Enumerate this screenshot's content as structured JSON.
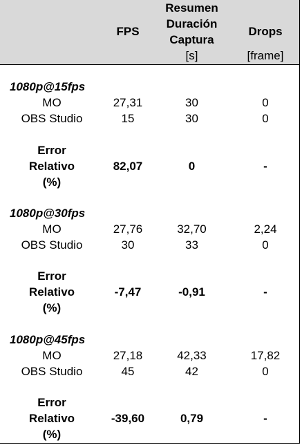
{
  "header": {
    "fps": "FPS",
    "summary_lines": [
      "Resumen",
      "Duración",
      "Captura"
    ],
    "duration_unit": "[s]",
    "drops": "Drops",
    "drops_unit": "[frame]"
  },
  "groups": [
    {
      "title": "1080p@15fps",
      "rows": [
        {
          "label": "MO",
          "fps": "27,31",
          "duration": "30",
          "drops": "0"
        },
        {
          "label": "OBS Studio",
          "fps": "15",
          "duration": "30",
          "drops": "0"
        }
      ],
      "error": {
        "label_lines": [
          "Error",
          "Relativo",
          "(%)"
        ],
        "fps": "82,07",
        "duration": "0",
        "drops": "-"
      }
    },
    {
      "title": "1080p@30fps",
      "rows": [
        {
          "label": "MO",
          "fps": "27,76",
          "duration": "32,70",
          "drops": "2,24"
        },
        {
          "label": "OBS Studio",
          "fps": "30",
          "duration": "33",
          "drops": "0"
        }
      ],
      "error": {
        "label_lines": [
          "Error",
          "Relativo",
          "(%)"
        ],
        "fps": "-7,47",
        "duration": "-0,91",
        "drops": "-"
      }
    },
    {
      "title": "1080p@45fps",
      "rows": [
        {
          "label": "MO",
          "fps": "27,18",
          "duration": "42,33",
          "drops": "17,82"
        },
        {
          "label": "OBS Studio",
          "fps": "45",
          "duration": "42",
          "drops": "0"
        }
      ],
      "error": {
        "label_lines": [
          "Error",
          "Relativo",
          "(%)"
        ],
        "fps": "-39,60",
        "duration": "0,79",
        "drops": "-"
      }
    }
  ]
}
